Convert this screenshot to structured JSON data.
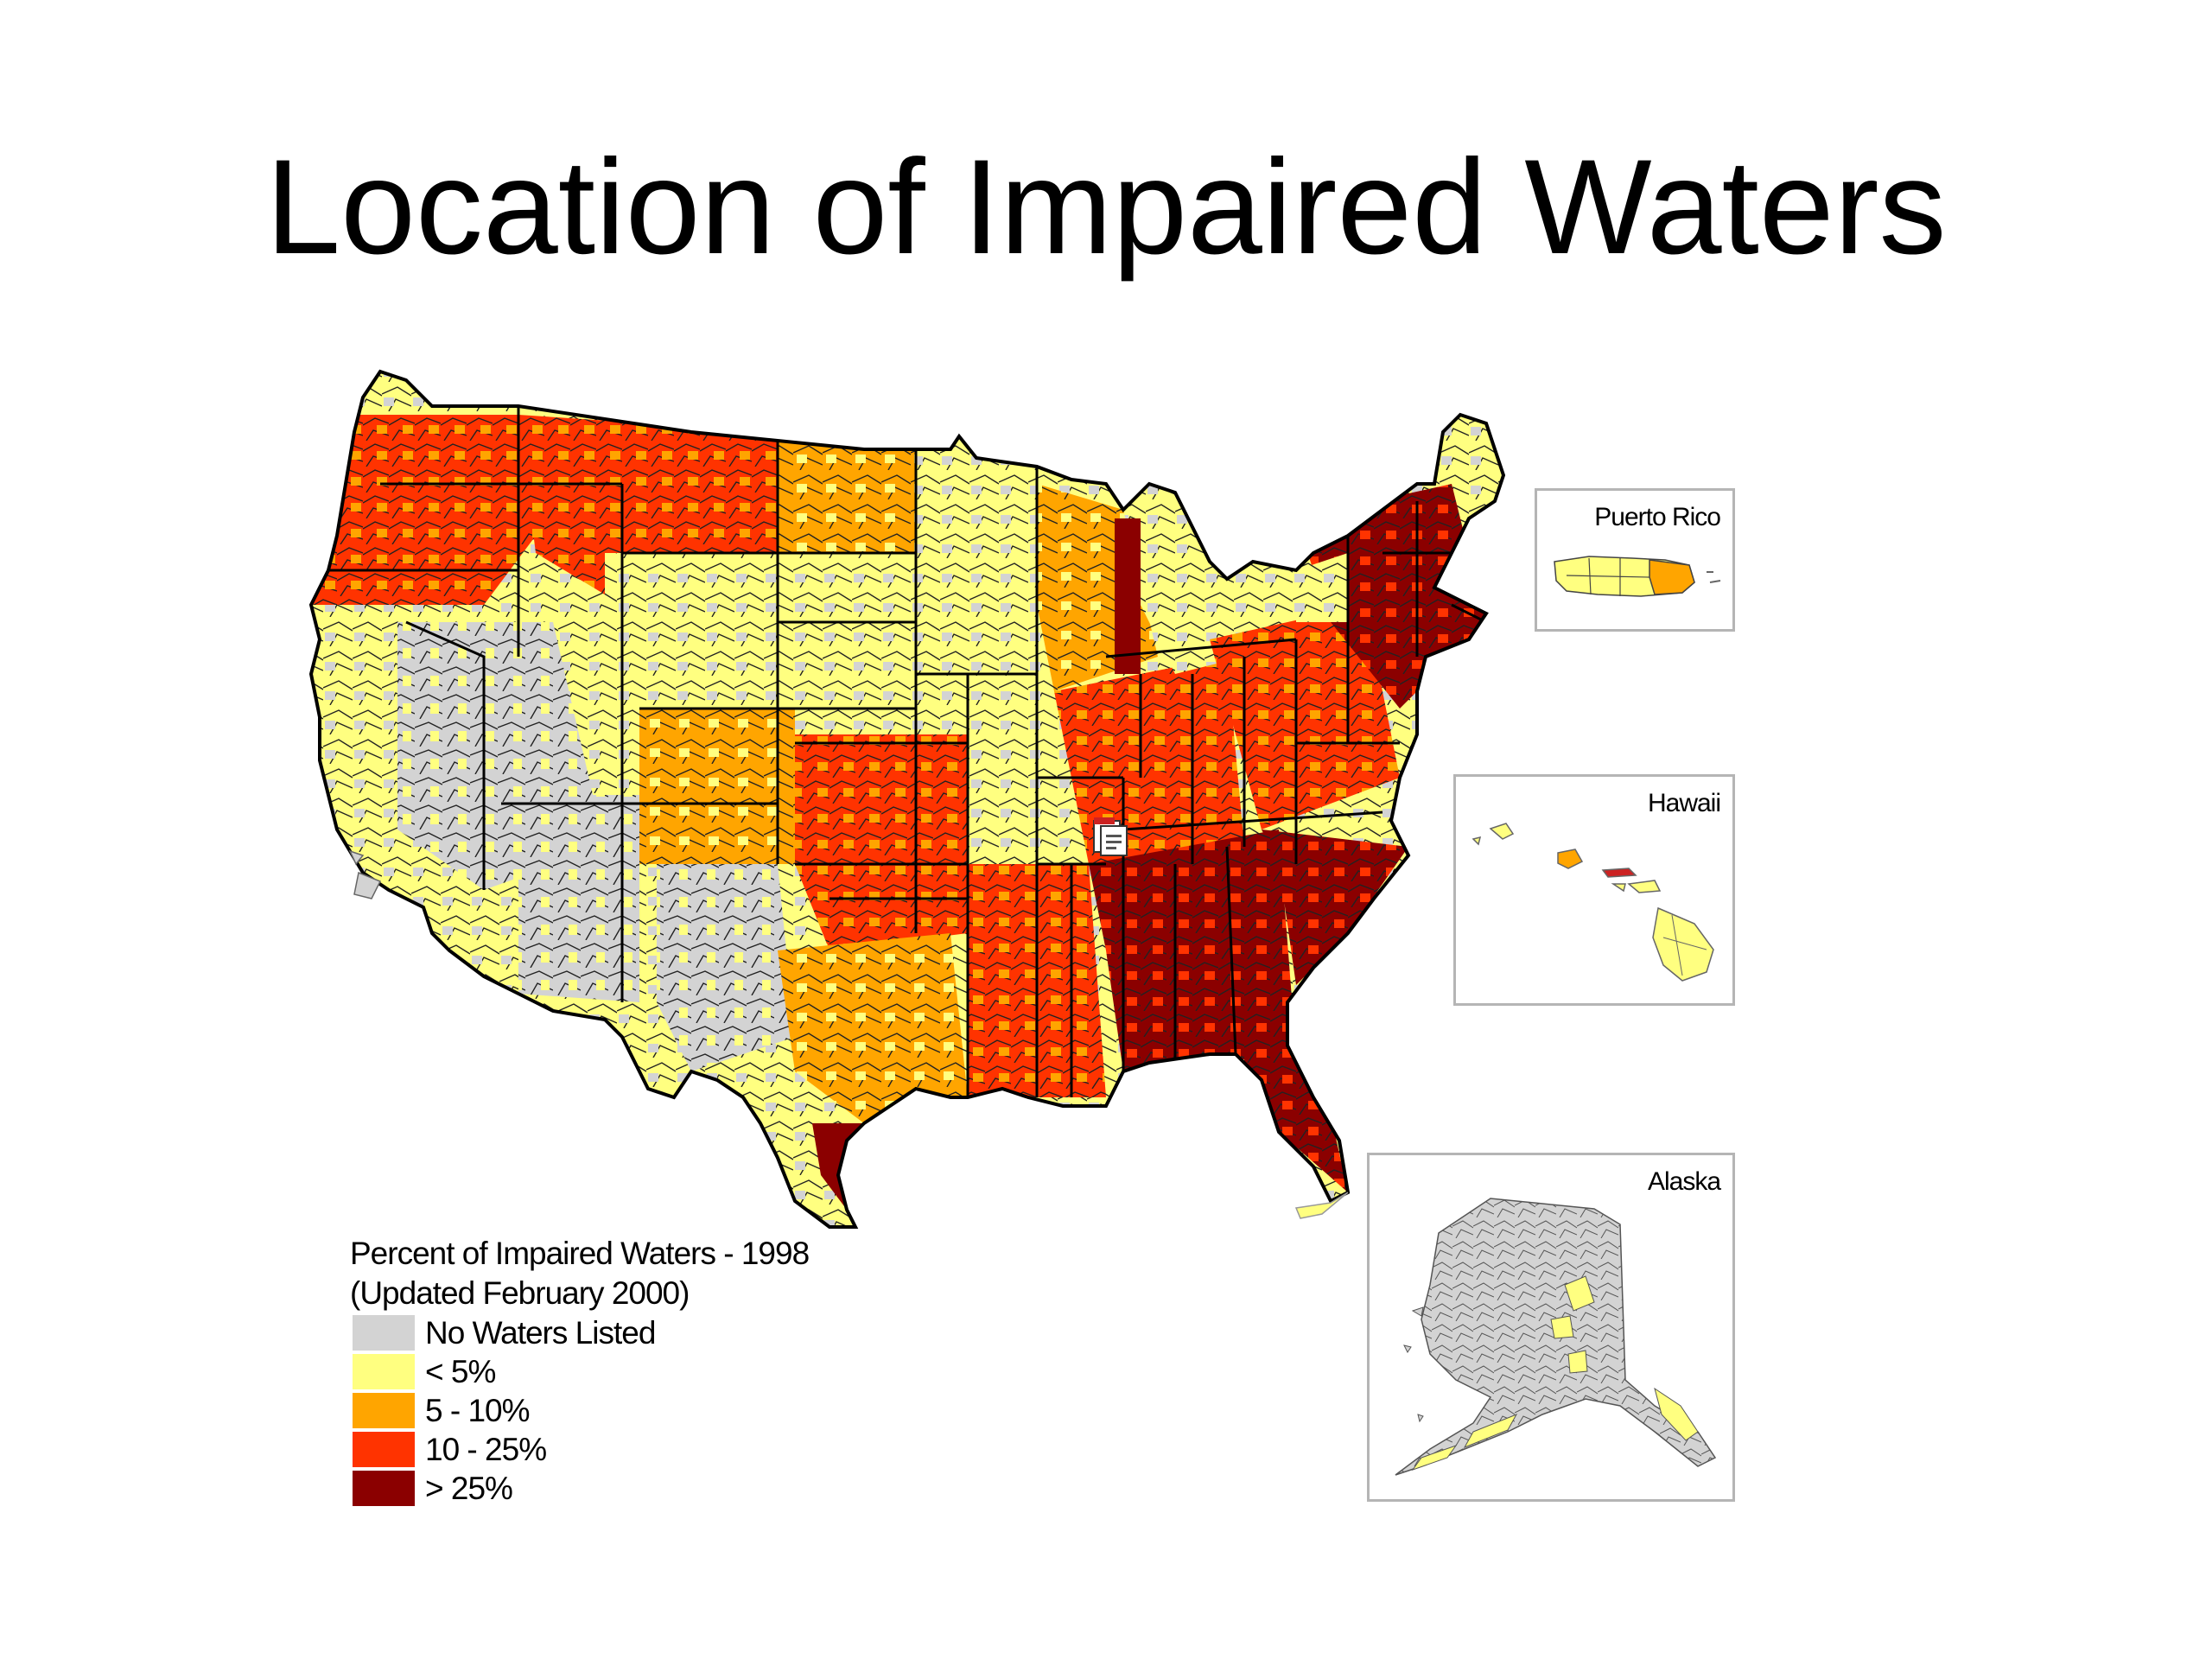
{
  "title": "Location of Impaired Waters",
  "legend": {
    "title_line1": "Percent of Impaired Waters - 1998",
    "title_line2": "(Updated February 2000)",
    "items": [
      {
        "label": "No Waters Listed",
        "color": "#d3d3d3"
      },
      {
        "label": "< 5%",
        "color": "#ffff80"
      },
      {
        "label": "5 - 10%",
        "color": "#ffa500"
      },
      {
        "label": "10 - 25%",
        "color": "#ff3300"
      },
      {
        "label": "> 25%",
        "color": "#8b0000"
      }
    ]
  },
  "insets": {
    "puerto_rico": "Puerto Rico",
    "hawaii": "Hawaii",
    "alaska": "Alaska"
  },
  "icons": {
    "file": "file-icon"
  }
}
